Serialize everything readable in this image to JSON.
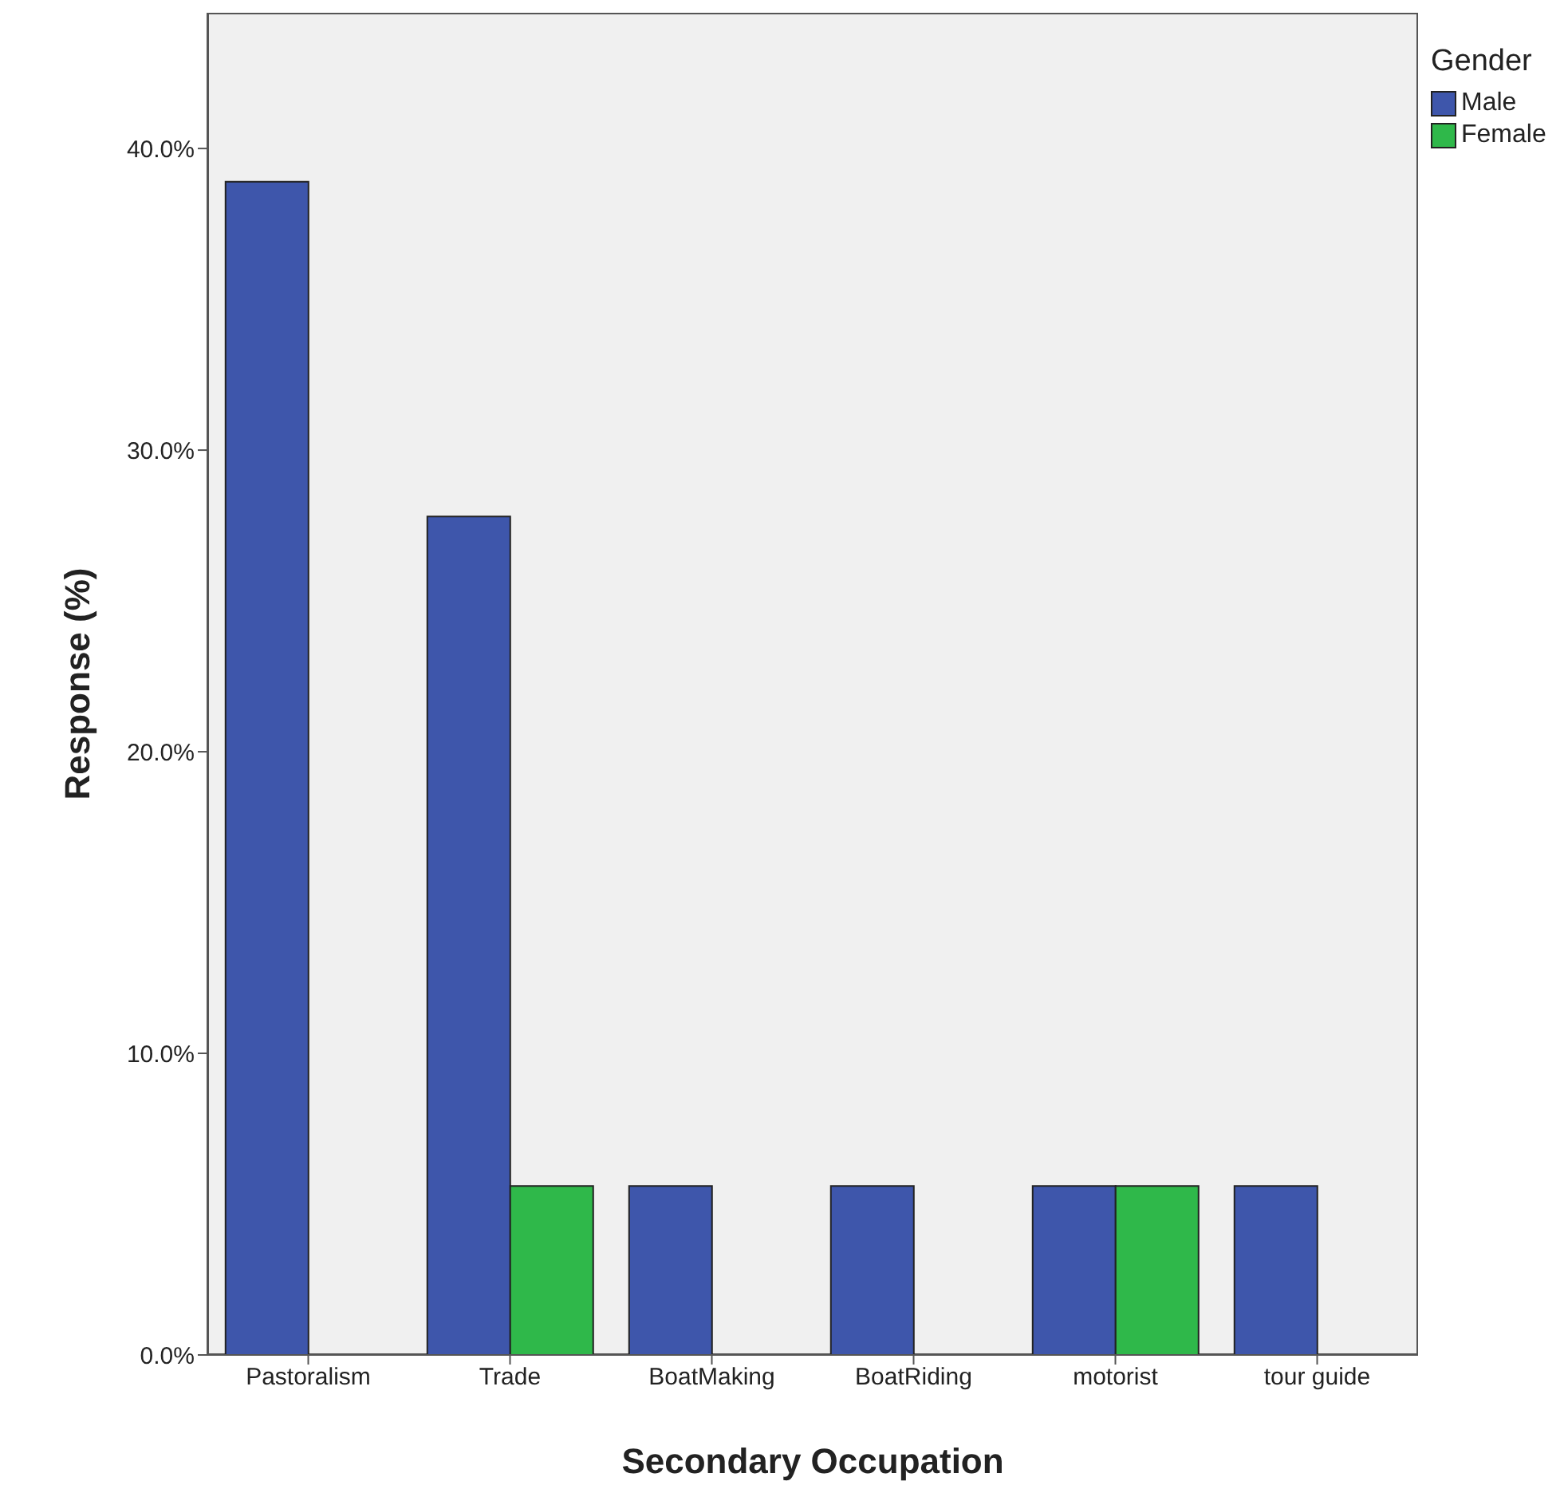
{
  "chart_data": {
    "type": "bar",
    "xlabel": "Secondary Occupation",
    "ylabel": "Response (%)",
    "legend_title": "Gender",
    "legend": "top right",
    "categories": [
      "Pastoralism",
      "Trade",
      "BoatMaking",
      "BoatRiding",
      "motorist",
      "tour guide"
    ],
    "series": [
      {
        "name": "Male",
        "color": "#3e56ab",
        "values": [
          38.9,
          27.8,
          5.6,
          5.6,
          5.6,
          5.6
        ]
      },
      {
        "name": "Female",
        "color": "#2fb84a",
        "values": [
          null,
          5.6,
          null,
          null,
          5.6,
          null
        ]
      }
    ],
    "ylim": [
      0,
      44.5
    ],
    "yticks": [
      {
        "value": 0,
        "label": "0.0%"
      },
      {
        "value": 10,
        "label": "10.0%"
      },
      {
        "value": 20,
        "label": "20.0%"
      },
      {
        "value": 30,
        "label": "30.0%"
      },
      {
        "value": 40,
        "label": "40.0%"
      }
    ]
  }
}
